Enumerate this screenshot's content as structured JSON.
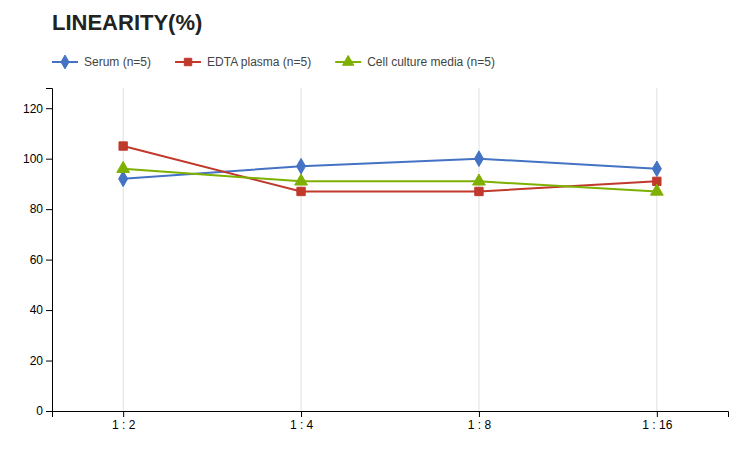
{
  "chart_data": {
    "type": "line",
    "title": "LINEARITY(%)",
    "categories": [
      "1 : 2",
      "1 : 4",
      "1 : 8",
      "1 : 16"
    ],
    "series": [
      {
        "name": "Serum (n=5)",
        "color": "#4472C4",
        "marker": "diamond",
        "values": [
          92,
          97,
          100,
          96
        ]
      },
      {
        "name": "EDTA plasma (n=5)",
        "color": "#C0392B",
        "marker": "square",
        "values": [
          105,
          87,
          87,
          91
        ]
      },
      {
        "name": "Cell culture media (n=5)",
        "color": "#7DB000",
        "marker": "triangle",
        "values": [
          96,
          91,
          91,
          87
        ]
      }
    ],
    "ylim": [
      0,
      128
    ],
    "yticks": [
      0,
      20,
      40,
      60,
      80,
      100,
      120
    ],
    "grid": true,
    "legend": "top"
  }
}
